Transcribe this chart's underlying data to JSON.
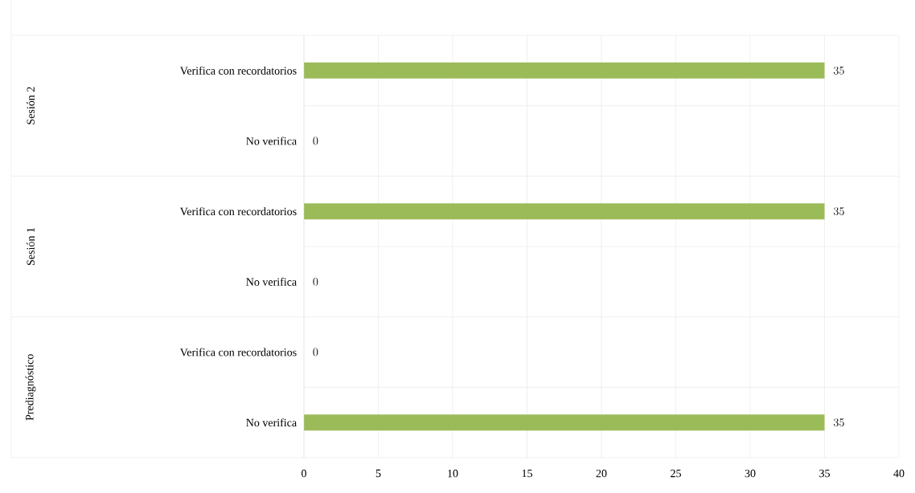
{
  "chart_data": {
    "type": "bar",
    "orientation": "horizontal",
    "categories": [
      "Verifica con recordatorios",
      "No verifica",
      "Verifica con recordatorios",
      "No verifica",
      "Verifica con recordatorios",
      "No verifica"
    ],
    "values": [
      35,
      0,
      35,
      0,
      0,
      35
    ],
    "color": "#9bbb59",
    "xlim": [
      0,
      40
    ],
    "xticks": [
      0,
      5,
      10,
      15,
      20,
      25,
      30,
      35,
      40
    ],
    "grid": "x",
    "data_labels": true,
    "annotations": [
      "Sesión 2",
      "Sesión 1",
      "Prediagnóstico"
    ]
  }
}
